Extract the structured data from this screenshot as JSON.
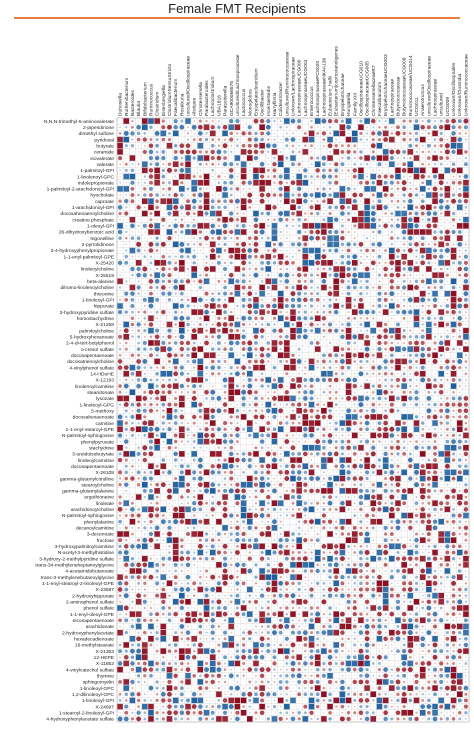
{
  "title": "Female FMT Recipients",
  "colors": {
    "title_rule": "#e8803c",
    "grid": "#bdbdbd",
    "positive_strong": "#8b0a1f",
    "positive_weak": "#f1b9a1",
    "negative_strong": "#1f5f9f",
    "negative_weak": "#b7d4ea"
  },
  "chart_data": {
    "type": "heatmap",
    "title": "Female FMT Recipients",
    "encoding": "correlation matrix (circle size and color = strength/sign; filled squares = significant)",
    "columns": [
      "Dubosiella",
      "Ruthenibacterium",
      "Bacteroides",
      "Blautia",
      "Bifidobacterium",
      "Ruminococcus",
      "Clostridium",
      "Eisenbergiella",
      "ClostridiumSensuStricto",
      "Faecalibacterium",
      "Roseburia",
      "uncultured/Oscillospiraceae",
      "Alistipes",
      "Christensenella",
      "Parabacteroides",
      "Lachnoclostridium",
      "UBA1816",
      "Parasutterella",
      "GCA900066575",
      "uncultured/Lachnospiraceae",
      "Lactococcus",
      "Monoglobus",
      "Erysipelatoclostridium",
      "Oscillibacter",
      "IncertaeSedis",
      "Harryflintia",
      "Colidextribacter",
      "uncultured/Ruminococcaceae",
      "Unknown/Lachnospiraceae",
      "LachnospiraceaeUCG006",
      "LachnospiraceaeUCG004",
      "Enterococcus",
      "LachnospiraceaeFCS020",
      "LachnospiraceaeNK4A136",
      "Eubacterium_hallii",
      "[Eubacterium]coprostanoligenes",
      "Erysipelotrichaceae",
      "Hungatella",
      "Family XIII",
      "OscillospiraceaeUCG010",
      "OscillospiraceaeUCG005",
      "ChristensenellaceaeR7",
      "Faecalibaculum",
      "ErysipelotrichaceaeUCG003",
      "Lachnospiraceae",
      "Butyricicoccaceae",
      "ButyricicoccaceaeUCG009",
      "Ruminococcaceae/UCG014",
      "UCG011",
      "Anaerotruncus",
      "uncultured/Oscillospiraceae",
      "Lachnospiraceae",
      "uncultured",
      "UCG009",
      "Unknown/Oscillospirales",
      "Unknown/Clostridia",
      "Unknown/Ruminococcaceae"
    ],
    "rows": [
      "N,N,N-trimethyl-5-aminovalerate",
      "2-piperidinone",
      "dimethyl sulfone",
      "pyridoxal",
      "butyrate",
      "ceramide",
      "isovalerate",
      "valerate",
      "1-palmitoyl-GPI",
      "1-linolenoyl-GPC",
      "indolepropionate",
      "1-palmitoyl-2-arachidonoyl-GPI",
      "hyocholate",
      "caproate",
      "1-arachidonoyl-GPI",
      "docosahexaenoylcholine",
      "creatine phosphate",
      "1-oleoyl-GPI",
      "26-dihydroxybenzoic acid",
      "trigonelline",
      "2-pyrrolidinone",
      "3-4-hydroxyphenylpropionate",
      "1-1-enyl-palmitoyl-GPE",
      "X-25420",
      "linoleoylcholine",
      "X-25519",
      "beta-alanine",
      "dihomo-linolenoylcholine",
      "threonine",
      "1-linoleoyl-GPI",
      "hippurate",
      "3-hydroxypyridine sulfate",
      "homostachydrine",
      "X-21258",
      "palmitoylcholine",
      "5-hydroxyhexanoate",
      "2-4-di-tert-butylphenol",
      "o-cresol sulfate",
      "docosapentaenoate",
      "docosatrienoylcholine",
      "4-vinylphenol sulfate",
      "14-HDoHE",
      "X-12193",
      "linolenoylcarnitine",
      "stearidonate",
      "lysozate",
      "1-linoleoyl-GPG",
      "5-methoxy",
      "docosahexaenoate",
      "carnitine",
      "1-1-enyl-stearoyl-GPE",
      "N-palmitoyl-sphingosine",
      "phenylpyruvate",
      "stachydrine",
      "3-ureidoisobutyrate",
      "linoleoylcarnitine",
      "docosapentaenoate",
      "X-26108",
      "gamma-glutamylcitrulline",
      "stearoylcholine",
      "gamma-glutamylalanine",
      "ergothioneine",
      "linoleate",
      "arachidonoylcholine",
      "N-palmitoyl-sphingosine",
      "phenylalanine",
      "decanoylcarnitine",
      "3-decenoate",
      "fructose",
      "3-hydroxypalmitoylcarnitine",
      "N-acetyl-3-methylhistidine",
      "3-hydroxy-2-methylpyridine sulfate",
      "trans-34-methyleneheptanoylglycine",
      "4-acetamidobutanoate",
      "trans-3-methylenebutanoylglycine",
      "1-1-enyl-stearoyl-2-linoleoyl-GPE",
      "X-23587",
      "2-hydroxyhippurate",
      "2-aminophenol sulfate",
      "phenol sulfate",
      "1-1-enyl-oleoyl-GPE",
      "eicosapentaenoate",
      "arachidonate",
      "2-hydroxyphenylacetate",
      "hexadecadienoate",
      "16-methylstearate",
      "X-21353",
      "12-HEPE",
      "X-11852",
      "4-vinylcatechol sulfate",
      "thymine",
      "sphingomyelin",
      "1-linoleoyl-GPC",
      "1,2-dilinoleoyl-GPC",
      "1-linoleoyl-GPI",
      "X-24697",
      "1-stearoyl-2-linoleoyl-GPI",
      "4-hydroxyphenylacetate sulfate"
    ],
    "value_range": [
      -1,
      1
    ],
    "values": []
  }
}
